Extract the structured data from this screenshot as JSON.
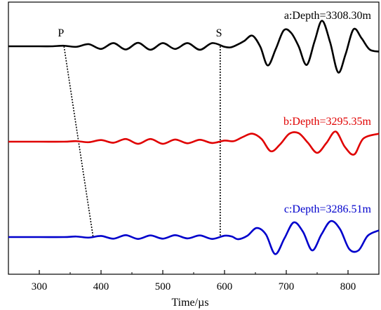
{
  "chart_data": {
    "type": "line",
    "xlabel": "Time/µs",
    "ylabel": "",
    "xlim": [
      250,
      850
    ],
    "x_ticks": [
      300,
      400,
      500,
      600,
      700,
      800
    ],
    "x_tick_labels": [
      "300",
      "400",
      "500",
      "600",
      "700",
      "800"
    ],
    "y_ticks_shown": false,
    "grid": false,
    "series": [
      {
        "name": "a:Depth=3308.30m",
        "color": "#000000",
        "baseline": 2,
        "x": [
          250,
          300,
          320,
          340,
          360,
          380,
          400,
          420,
          440,
          460,
          480,
          500,
          520,
          540,
          560,
          580,
          600,
          610,
          620,
          632,
          645,
          658,
          670,
          683,
          696,
          708,
          720,
          733,
          746,
          758,
          771,
          784,
          796,
          809,
          822,
          835,
          850
        ],
        "y": [
          0,
          0,
          0,
          0.02,
          -0.02,
          0.08,
          -0.1,
          0.12,
          -0.12,
          0.13,
          -0.13,
          0.12,
          -0.1,
          0.12,
          -0.13,
          0.12,
          -0.02,
          -0.04,
          0.05,
          0.2,
          0.4,
          -0.02,
          -0.72,
          -0.1,
          0.6,
          0.5,
          0,
          -0.7,
          0.2,
          0.96,
          0.15,
          -0.98,
          -0.3,
          0.64,
          0.3,
          -0.12,
          -0.2
        ]
      },
      {
        "name": "b:Depth=3295.35m",
        "color": "#e00000",
        "baseline": 1,
        "x": [
          250,
          300,
          340,
          360,
          380,
          400,
          420,
          440,
          460,
          480,
          500,
          520,
          540,
          560,
          580,
          600,
          615,
          630,
          645,
          660,
          675,
          690,
          705,
          720,
          735,
          750,
          765,
          780,
          795,
          810,
          825,
          850
        ],
        "y": [
          0,
          0,
          0,
          0.02,
          -0.02,
          0.06,
          -0.04,
          0.1,
          -0.08,
          0.1,
          -0.08,
          0.08,
          -0.06,
          0.07,
          -0.05,
          0.04,
          0.02,
          0.18,
          0.3,
          0.1,
          -0.36,
          -0.1,
          0.3,
          0.32,
          -0.04,
          -0.42,
          -0.05,
          0.38,
          -0.2,
          -0.48,
          0.12,
          0.3
        ]
      },
      {
        "name": "c:Depth=3286.51m",
        "color": "#0000cc",
        "baseline": 0,
        "x": [
          250,
          300,
          340,
          360,
          380,
          400,
          420,
          440,
          460,
          480,
          500,
          520,
          540,
          560,
          580,
          600,
          612,
          622,
          637,
          652,
          667,
          682,
          697,
          712,
          727,
          742,
          757,
          772,
          787,
          802,
          817,
          832,
          850
        ],
        "y": [
          0,
          0,
          0,
          0.02,
          -0.02,
          0.04,
          -0.06,
          0.07,
          -0.07,
          0.06,
          -0.06,
          0.07,
          -0.05,
          0.06,
          -0.07,
          0.05,
          0.02,
          -0.08,
          0.05,
          0.34,
          0.1,
          -0.64,
          -0.05,
          0.55,
          0.2,
          -0.5,
          0.1,
          0.6,
          0.3,
          -0.45,
          -0.5,
          0.05,
          0.25
        ]
      }
    ],
    "annotations": [
      {
        "text": "P",
        "x": 335,
        "y": 2.09
      },
      {
        "text": "S",
        "x": 591,
        "y": 2.09
      }
    ],
    "picks": [
      {
        "name": "P",
        "from": {
          "x": 340,
          "y": 2
        },
        "to": {
          "x": 387,
          "y": 0.03
        }
      },
      {
        "name": "S",
        "from": {
          "x": 593,
          "y": 2
        },
        "to": {
          "x": 593,
          "y": 0.03
        }
      }
    ]
  }
}
